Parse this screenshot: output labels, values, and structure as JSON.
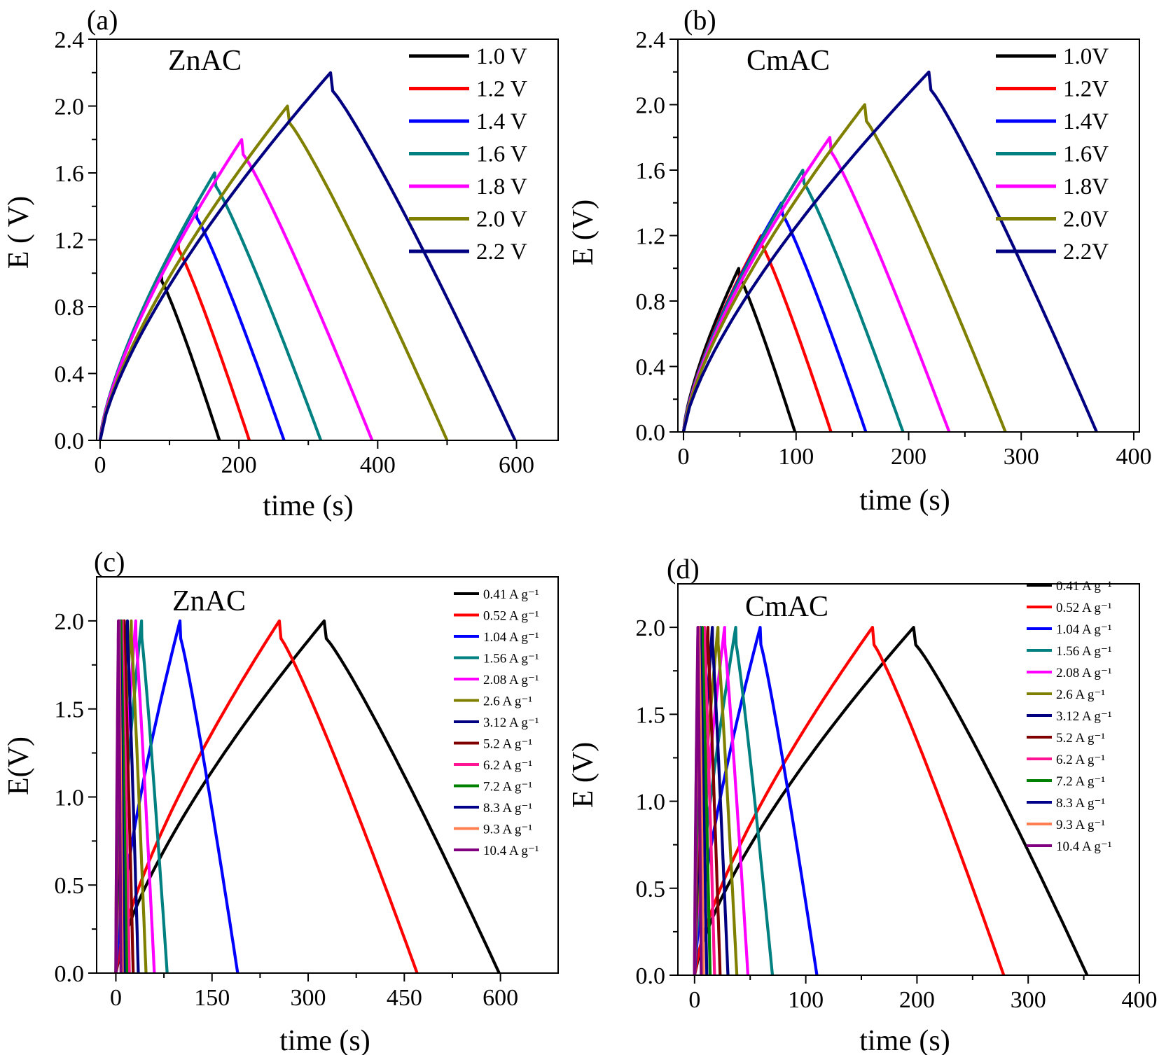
{
  "chart_data": [
    {
      "panel": "(a)",
      "type": "line",
      "sample": "ZnAC",
      "xlabel": "time (s)",
      "ylabel": "E ( V)",
      "xlim": [
        -5,
        660
      ],
      "ylim": [
        0,
        2.4
      ],
      "xticks": [
        0,
        200,
        400,
        600
      ],
      "yticks": [
        0.0,
        0.4,
        0.8,
        1.2,
        1.6,
        2.0,
        2.4
      ],
      "ytick_decimals": 1,
      "legend_placement": "top-right",
      "series": [
        {
          "name": "1.0 V",
          "color": "#000000",
          "vmax": 1.0,
          "t_peak": 88,
          "t_end": 172
        },
        {
          "name": "1.2 V",
          "color": "#ff0000",
          "vmax": 1.2,
          "t_peak": 112,
          "t_end": 215
        },
        {
          "name": "1.4 V",
          "color": "#0000ff",
          "vmax": 1.4,
          "t_peak": 138,
          "t_end": 265
        },
        {
          "name": "1.6 V",
          "color": "#008080",
          "vmax": 1.6,
          "t_peak": 165,
          "t_end": 318
        },
        {
          "name": "1.8 V",
          "color": "#ff00ff",
          "vmax": 1.8,
          "t_peak": 204,
          "t_end": 392
        },
        {
          "name": "2.0 V",
          "color": "#808000",
          "vmax": 2.0,
          "t_peak": 270,
          "t_end": 500
        },
        {
          "name": "2.2 V",
          "color": "#000080",
          "vmax": 2.2,
          "t_peak": 332,
          "t_end": 598
        }
      ]
    },
    {
      "panel": "(b)",
      "type": "line",
      "sample": "CmAC",
      "xlabel": "time (s)",
      "ylabel": "E (V)",
      "xlim": [
        -5,
        405
      ],
      "ylim": [
        0,
        2.4
      ],
      "xticks": [
        0,
        100,
        200,
        300,
        400
      ],
      "yticks": [
        0.0,
        0.4,
        0.8,
        1.2,
        1.6,
        2.0,
        2.4
      ],
      "ytick_decimals": 1,
      "legend_placement": "top-right",
      "series": [
        {
          "name": "1.0V",
          "color": "#000000",
          "vmax": 1.0,
          "t_peak": 49,
          "t_end": 99
        },
        {
          "name": "1.2V",
          "color": "#ff0000",
          "vmax": 1.2,
          "t_peak": 69,
          "t_end": 131
        },
        {
          "name": "1.4V",
          "color": "#0000ff",
          "vmax": 1.4,
          "t_peak": 87,
          "t_end": 162
        },
        {
          "name": "1.6V",
          "color": "#008080",
          "vmax": 1.6,
          "t_peak": 106,
          "t_end": 195
        },
        {
          "name": "1.8V",
          "color": "#ff00ff",
          "vmax": 1.8,
          "t_peak": 130,
          "t_end": 236
        },
        {
          "name": "2.0V",
          "color": "#808000",
          "vmax": 2.0,
          "t_peak": 161,
          "t_end": 286
        },
        {
          "name": "2.2V",
          "color": "#000080",
          "vmax": 2.2,
          "t_peak": 218,
          "t_end": 367
        }
      ]
    },
    {
      "panel": "(c)",
      "type": "line",
      "sample": "ZnAC",
      "xlabel": "time (s)",
      "ylabel": "E(V)",
      "xlim": [
        -30,
        690
      ],
      "ylim": [
        0,
        2.25
      ],
      "xticks": [
        0,
        150,
        300,
        450,
        600
      ],
      "yticks": [
        0.0,
        0.5,
        1.0,
        1.5,
        2.0
      ],
      "ytick_decimals": 1,
      "legend_placement": "top-right",
      "series": [
        {
          "name": "0.41 A g⁻¹",
          "color": "#000000",
          "vmax": 2.0,
          "t_peak": 325,
          "t_end": 598
        },
        {
          "name": "0.52 A g⁻¹",
          "color": "#ff0000",
          "vmax": 2.0,
          "t_peak": 255,
          "t_end": 470
        },
        {
          "name": "1.04 A g⁻¹",
          "color": "#0000ff",
          "vmax": 2.0,
          "t_peak": 100,
          "t_end": 190
        },
        {
          "name": "1.56 A g⁻¹",
          "color": "#008080",
          "vmax": 2.0,
          "t_peak": 40,
          "t_end": 80
        },
        {
          "name": "2.08 A g⁻¹",
          "color": "#ff00ff",
          "vmax": 2.0,
          "t_peak": 31,
          "t_end": 60
        },
        {
          "name": "2.6 A g⁻¹",
          "color": "#808000",
          "vmax": 2.0,
          "t_peak": 24,
          "t_end": 47
        },
        {
          "name": "3.12 A g⁻¹",
          "color": "#000080",
          "vmax": 2.0,
          "t_peak": 18,
          "t_end": 35
        },
        {
          "name": "5.2 A g⁻¹",
          "color": "#800000",
          "vmax": 2.0,
          "t_peak": 13,
          "t_end": 27
        },
        {
          "name": "6.2 A g⁻¹",
          "color": "#ff1493",
          "vmax": 2.0,
          "t_peak": 10,
          "t_end": 21
        },
        {
          "name": "7.2 A g⁻¹",
          "color": "#008000",
          "vmax": 2.0,
          "t_peak": 8,
          "t_end": 17
        },
        {
          "name": "8.3 A g⁻¹",
          "color": "#00008b",
          "vmax": 2.0,
          "t_peak": 6,
          "t_end": 13
        },
        {
          "name": "9.3 A g⁻¹",
          "color": "#ff7f50",
          "vmax": 2.0,
          "t_peak": 5,
          "t_end": 10
        },
        {
          "name": "10.4 A g⁻¹",
          "color": "#800080",
          "vmax": 2.0,
          "t_peak": 4,
          "t_end": 8
        }
      ]
    },
    {
      "panel": "(d)",
      "type": "line",
      "sample": "CmAC",
      "xlabel": "time (s)",
      "ylabel": "E (V)",
      "xlim": [
        -15,
        400
      ],
      "ylim": [
        0,
        2.25
      ],
      "xticks": [
        0,
        100,
        200,
        300,
        400
      ],
      "yticks": [
        0.0,
        0.5,
        1.0,
        1.5,
        2.0
      ],
      "ytick_decimals": 1,
      "legend_placement": "top-right",
      "series": [
        {
          "name": "0.41 A g⁻¹",
          "color": "#000000",
          "vmax": 2.0,
          "t_peak": 197,
          "t_end": 353
        },
        {
          "name": "0.52 A g⁻¹",
          "color": "#ff0000",
          "vmax": 2.0,
          "t_peak": 160,
          "t_end": 278
        },
        {
          "name": "1.04 A g⁻¹",
          "color": "#0000ff",
          "vmax": 2.0,
          "t_peak": 59,
          "t_end": 110
        },
        {
          "name": "1.56 A g⁻¹",
          "color": "#008080",
          "vmax": 2.0,
          "t_peak": 37,
          "t_end": 70
        },
        {
          "name": "2.08 A g⁻¹",
          "color": "#ff00ff",
          "vmax": 2.0,
          "t_peak": 27,
          "t_end": 48
        },
        {
          "name": "2.6 A g⁻¹",
          "color": "#808000",
          "vmax": 2.0,
          "t_peak": 21,
          "t_end": 38
        },
        {
          "name": "3.12 A g⁻¹",
          "color": "#000080",
          "vmax": 2.0,
          "t_peak": 16,
          "t_end": 30
        },
        {
          "name": "5.2 A g⁻¹",
          "color": "#800000",
          "vmax": 2.0,
          "t_peak": 12,
          "t_end": 23
        },
        {
          "name": "6.2 A g⁻¹",
          "color": "#ff1493",
          "vmax": 2.0,
          "t_peak": 9,
          "t_end": 18
        },
        {
          "name": "7.2 A g⁻¹",
          "color": "#008000",
          "vmax": 2.0,
          "t_peak": 7,
          "t_end": 14
        },
        {
          "name": "8.3 A g⁻¹",
          "color": "#00008b",
          "vmax": 2.0,
          "t_peak": 5,
          "t_end": 11
        },
        {
          "name": "9.3 A g⁻¹",
          "color": "#ff7f50",
          "vmax": 2.0,
          "t_peak": 4,
          "t_end": 8
        },
        {
          "name": "10.4 A g⁻¹",
          "color": "#800080",
          "vmax": 2.0,
          "t_peak": 3,
          "t_end": 6
        }
      ]
    }
  ]
}
